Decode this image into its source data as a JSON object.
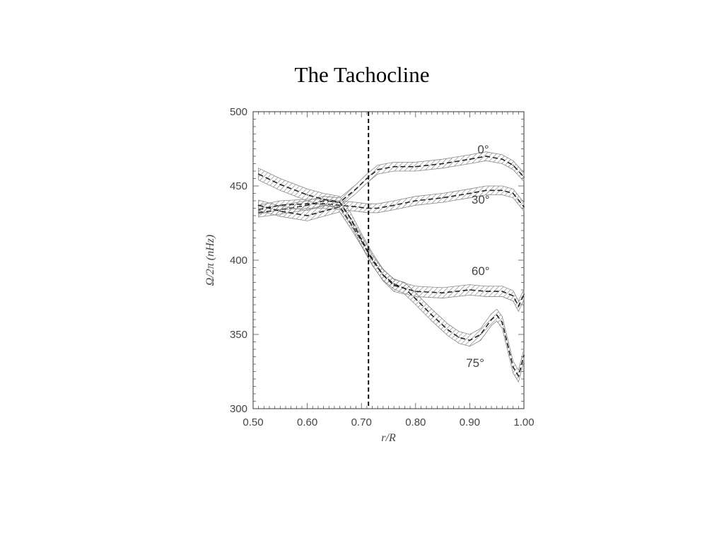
{
  "slide": {
    "title": "The Tachocline"
  },
  "chart_data": {
    "type": "line",
    "xlabel": "r/R",
    "ylabel": "Ω/2π (nHz)",
    "xlim": [
      0.5,
      1.0
    ],
    "ylim": [
      300,
      500
    ],
    "xticks": [
      "0.50",
      "0.60",
      "0.70",
      "0.80",
      "0.90",
      "1.00"
    ],
    "yticks": [
      "300",
      "350",
      "400",
      "450",
      "500"
    ],
    "vline": 0.713,
    "colors": {
      "axis": "#555555",
      "curve": "#222222",
      "band": "#888888"
    },
    "series": [
      {
        "name": "0°",
        "label_pos": [
          0.925,
          472
        ],
        "x": [
          0.51,
          0.55,
          0.6,
          0.63,
          0.66,
          0.69,
          0.71,
          0.73,
          0.76,
          0.8,
          0.85,
          0.9,
          0.93,
          0.96,
          0.98,
          1.0
        ],
        "y": [
          432,
          434,
          437,
          440,
          439,
          448,
          455,
          461,
          463,
          463,
          465,
          468,
          470,
          468,
          464,
          456
        ]
      },
      {
        "name": "30°",
        "label_pos": [
          0.92,
          438
        ],
        "x": [
          0.51,
          0.55,
          0.6,
          0.63,
          0.66,
          0.69,
          0.71,
          0.73,
          0.76,
          0.8,
          0.85,
          0.9,
          0.93,
          0.96,
          0.98,
          1.0
        ],
        "y": [
          434,
          437,
          438,
          438,
          437,
          436,
          435,
          435,
          437,
          440,
          442,
          445,
          447,
          447,
          445,
          436
        ]
      },
      {
        "name": "60°",
        "label_pos": [
          0.92,
          390
        ],
        "x": [
          0.51,
          0.55,
          0.6,
          0.63,
          0.66,
          0.68,
          0.7,
          0.72,
          0.74,
          0.76,
          0.78,
          0.8,
          0.85,
          0.9,
          0.93,
          0.96,
          0.98,
          0.99,
          1.0
        ],
        "y": [
          437,
          433,
          430,
          433,
          436,
          425,
          413,
          400,
          390,
          384,
          381,
          379,
          378,
          380,
          379,
          379,
          376,
          369,
          377
        ]
      },
      {
        "name": "75°",
        "label_pos": [
          0.91,
          328
        ],
        "x": [
          0.51,
          0.55,
          0.6,
          0.63,
          0.66,
          0.68,
          0.7,
          0.72,
          0.74,
          0.76,
          0.78,
          0.8,
          0.83,
          0.86,
          0.88,
          0.9,
          0.92,
          0.94,
          0.95,
          0.96,
          0.97,
          0.98,
          0.99,
          1.0
        ],
        "y": [
          458,
          451,
          444,
          441,
          439,
          428,
          414,
          401,
          390,
          383,
          381,
          374,
          363,
          353,
          348,
          346,
          350,
          360,
          363,
          358,
          343,
          328,
          322,
          336
        ]
      }
    ]
  }
}
